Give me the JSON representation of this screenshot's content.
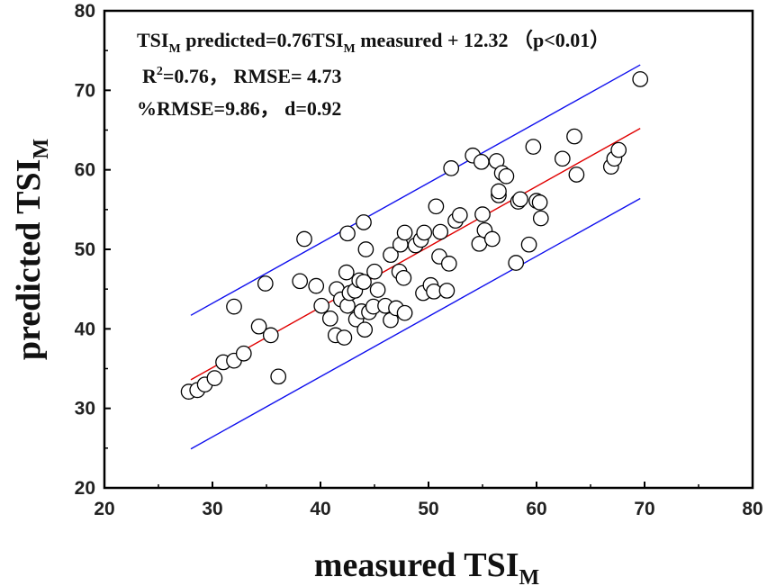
{
  "chart_data": {
    "type": "scatter",
    "title": "",
    "xlabel": {
      "main": "measured TSI",
      "sub": "M"
    },
    "ylabel": {
      "main": "predicted TSI",
      "sub": "M"
    },
    "xlim": [
      20,
      80
    ],
    "ylim": [
      20,
      80
    ],
    "xticks": [
      "20",
      "30",
      "40",
      "50",
      "60",
      "70",
      "80"
    ],
    "yticks": [
      "20",
      "30",
      "40",
      "50",
      "60",
      "70",
      "80"
    ],
    "annotations": {
      "line1": {
        "a": "TSI",
        "a_sub": "M",
        "b": " predicted=0.76TSI",
        "b_sub": "M",
        "c": " measured + 12.32 （p<0.01）"
      },
      "line2": {
        "a": "R",
        "a_sup": "2",
        "b": "=0.76，  RMSE= 4.73"
      },
      "line3": "%RMSE=9.86，  d=0.92"
    },
    "regression": {
      "slope": 0.76,
      "intercept": 12.32,
      "x_range": [
        28,
        69.6
      ],
      "color": "#e00000"
    },
    "bounds": [
      {
        "name": "upper",
        "start": [
          28,
          41.7
        ],
        "end": [
          69.6,
          73.2
        ],
        "color": "#1010ee"
      },
      {
        "name": "lower",
        "start": [
          28,
          24.9
        ],
        "end": [
          69.6,
          56.4
        ],
        "color": "#1010ee"
      }
    ],
    "series": [
      {
        "name": "samples",
        "marker": "open-circle",
        "points": [
          [
            27.8,
            32.1
          ],
          [
            28.6,
            32.3
          ],
          [
            29.3,
            33.0
          ],
          [
            30.2,
            33.8
          ],
          [
            31.0,
            35.8
          ],
          [
            32.0,
            36.0
          ],
          [
            32.9,
            36.9
          ],
          [
            32.0,
            42.8
          ],
          [
            34.3,
            40.3
          ],
          [
            35.4,
            39.2
          ],
          [
            34.9,
            45.7
          ],
          [
            36.1,
            34.0
          ],
          [
            38.1,
            46.0
          ],
          [
            38.5,
            51.3
          ],
          [
            39.6,
            45.4
          ],
          [
            40.1,
            42.9
          ],
          [
            40.9,
            41.3
          ],
          [
            41.4,
            39.2
          ],
          [
            41.5,
            45.0
          ],
          [
            41.9,
            43.7
          ],
          [
            42.2,
            38.9
          ],
          [
            42.5,
            42.9
          ],
          [
            42.4,
            47.1
          ],
          [
            42.7,
            44.5
          ],
          [
            42.5,
            52.0
          ],
          [
            43.2,
            44.8
          ],
          [
            43.6,
            46.1
          ],
          [
            43.3,
            41.2
          ],
          [
            43.8,
            42.2
          ],
          [
            44.1,
            39.9
          ],
          [
            44.0,
            45.9
          ],
          [
            44.5,
            42.1
          ],
          [
            44.9,
            42.8
          ],
          [
            45.0,
            47.2
          ],
          [
            44.2,
            50.0
          ],
          [
            44.0,
            53.4
          ],
          [
            45.3,
            44.9
          ],
          [
            46.0,
            42.9
          ],
          [
            46.5,
            41.1
          ],
          [
            46.5,
            49.3
          ],
          [
            47.0,
            42.6
          ],
          [
            47.3,
            47.2
          ],
          [
            47.7,
            46.4
          ],
          [
            47.4,
            50.6
          ],
          [
            47.8,
            42.0
          ],
          [
            47.8,
            52.1
          ],
          [
            48.8,
            50.5
          ],
          [
            49.3,
            51.2
          ],
          [
            49.6,
            52.1
          ],
          [
            49.5,
            44.5
          ],
          [
            50.2,
            45.5
          ],
          [
            50.5,
            44.7
          ],
          [
            50.7,
            55.4
          ],
          [
            51.0,
            49.1
          ],
          [
            51.1,
            52.2
          ],
          [
            51.7,
            44.8
          ],
          [
            51.9,
            48.2
          ],
          [
            52.1,
            60.2
          ],
          [
            52.5,
            53.6
          ],
          [
            52.9,
            54.3
          ],
          [
            54.1,
            61.8
          ],
          [
            54.7,
            50.7
          ],
          [
            55.0,
            54.4
          ],
          [
            54.9,
            61.0
          ],
          [
            55.2,
            52.4
          ],
          [
            55.9,
            51.3
          ],
          [
            56.3,
            61.1
          ],
          [
            56.5,
            56.8
          ],
          [
            56.5,
            57.3
          ],
          [
            56.8,
            59.6
          ],
          [
            57.2,
            59.2
          ],
          [
            58.1,
            48.3
          ],
          [
            58.3,
            56.0
          ],
          [
            58.5,
            56.3
          ],
          [
            59.3,
            50.6
          ],
          [
            59.7,
            62.9
          ],
          [
            60.0,
            56.1
          ],
          [
            60.3,
            55.9
          ],
          [
            60.4,
            53.9
          ],
          [
            62.4,
            61.4
          ],
          [
            63.5,
            64.2
          ],
          [
            63.7,
            59.4
          ],
          [
            66.9,
            60.4
          ],
          [
            67.2,
            61.4
          ],
          [
            67.6,
            62.5
          ],
          [
            69.6,
            71.4
          ]
        ]
      }
    ]
  }
}
